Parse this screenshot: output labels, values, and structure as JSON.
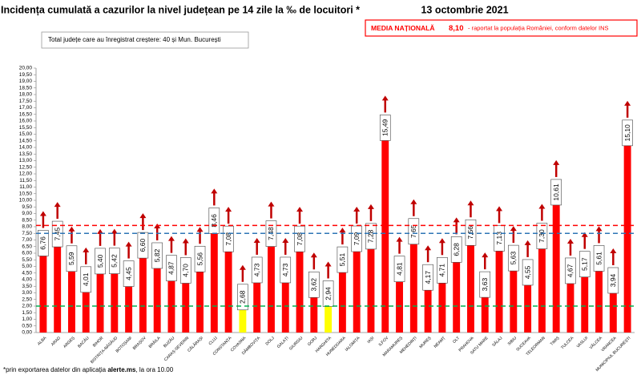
{
  "chart_data": {
    "type": "bar",
    "title": "Incidența cumulată a cazurilor la nivel județean pe 14 zile la ‰ de locuitori *",
    "date": "13 octombrie 2021",
    "note": "Total județe care au înregistrat creștere:  40 și Mun. București",
    "national_label": "MEDIA NAȚIONALĂ",
    "national_note": "- raportat la populația României, conform datelor INS",
    "footnote": [
      "*prin exportarea datelor din aplicația ",
      "alerte.ms",
      ", la ora 10.00"
    ],
    "categories": [
      "ALBA",
      "ARAD",
      "ARGEȘ",
      "BACĂU",
      "BIHOR",
      "BISTRIȚA-NĂSĂUD",
      "BOTOȘANI",
      "BRAȘOV",
      "BRĂILA",
      "BUZĂU",
      "CARAȘ-SEVERIN",
      "CĂLĂRAȘI",
      "CLUJ",
      "CONSTANȚA",
      "COVASNA",
      "DÂMBOVIȚA",
      "DOLJ",
      "GALAȚI",
      "GIURGIU",
      "GORJ",
      "HARGHITA",
      "HUNEDOARA",
      "IALOMIȚA",
      "IAȘI",
      "ILFOV",
      "MARAMUREȘ",
      "MEHEDINȚI",
      "MUREȘ",
      "NEAMȚ",
      "OLT",
      "PRAHOVA",
      "SATU MARE",
      "SĂLAJ",
      "SIBIU",
      "SUCEAVA",
      "TELEORMAN",
      "TIMIȘ",
      "TULCEA",
      "VASLUI",
      "VÂLCEA",
      "VRANCEA",
      "MUNICIPIUL BUCUREȘTI"
    ],
    "values": [
      6.76,
      7.45,
      5.59,
      4.01,
      5.4,
      5.42,
      4.45,
      6.6,
      5.82,
      4.87,
      4.7,
      5.56,
      8.46,
      7.08,
      2.68,
      4.73,
      7.48,
      4.73,
      7.08,
      3.62,
      2.94,
      5.51,
      7.09,
      7.28,
      15.49,
      4.81,
      7.65,
      4.17,
      4.71,
      6.28,
      7.56,
      3.63,
      7.13,
      5.63,
      4.55,
      7.3,
      10.61,
      4.67,
      5.17,
      5.61,
      3.94,
      15.1
    ],
    "value_labels": [
      "6,76",
      "7,45",
      "5,59",
      "4,01",
      "5,40",
      "5,42",
      "4,45",
      "6,60",
      "5,82",
      "4,87",
      "4,70",
      "5,56",
      "8,46",
      "7,08",
      "2,68",
      "4,73",
      "7,48",
      "4,73",
      "7,08",
      "3,62",
      "2,94",
      "5,51",
      "7,09",
      "7,28",
      "15,49",
      "4,81",
      "7,65",
      "4,17",
      "4,71",
      "6,28",
      "7,56",
      "3,63",
      "7,13",
      "5,63",
      "4,55",
      "7,30",
      "10,61",
      "4,67",
      "5,17",
      "5,61",
      "3,94",
      "15,10"
    ],
    "colors": [
      "#ff0000",
      "#ff0000",
      "#ff0000",
      "#ff0000",
      "#ff0000",
      "#ff0000",
      "#ff0000",
      "#ff0000",
      "#ff0000",
      "#ff0000",
      "#ff0000",
      "#ff0000",
      "#ff0000",
      "#ff0000",
      "#ffff00",
      "#ff0000",
      "#ff0000",
      "#ff0000",
      "#ff0000",
      "#ff0000",
      "#ffff00",
      "#ff0000",
      "#ff0000",
      "#ff0000",
      "#ff0000",
      "#ff0000",
      "#ff0000",
      "#ff0000",
      "#ff0000",
      "#ff0000",
      "#ff0000",
      "#ff0000",
      "#ff0000",
      "#ff0000",
      "#ff0000",
      "#ff0000",
      "#ff0000",
      "#ff0000",
      "#ff0000",
      "#ff0000",
      "#ff0000",
      "#ff0000"
    ],
    "reference_lines": [
      {
        "value": 8.1,
        "label": "8,10",
        "color": "#ff0000"
      },
      {
        "value": 7.5,
        "color": "#2e75b6"
      },
      {
        "value": 2.0,
        "color": "#00b050"
      }
    ],
    "ylim": [
      0,
      20
    ],
    "yticks": [
      {
        "value": 0,
        "label": "0,00"
      },
      {
        "value": 0.5,
        "label": "0,50"
      },
      {
        "value": 1,
        "label": "1,00"
      },
      {
        "value": 1.5,
        "label": "1,50"
      },
      {
        "value": 2,
        "label": "2,00"
      },
      {
        "value": 2.5,
        "label": "2,50"
      },
      {
        "value": 3,
        "label": "3,00"
      },
      {
        "value": 3.5,
        "label": "3,50"
      },
      {
        "value": 4,
        "label": "4,00"
      },
      {
        "value": 4.5,
        "label": "4,50"
      },
      {
        "value": 5,
        "label": "5,00"
      },
      {
        "value": 5.5,
        "label": "5,50"
      },
      {
        "value": 6,
        "label": "6,00"
      },
      {
        "value": 6.5,
        "label": "6,50"
      },
      {
        "value": 7,
        "label": "7,00"
      },
      {
        "value": 7.5,
        "label": "7,50"
      },
      {
        "value": 8,
        "label": "8,00"
      },
      {
        "value": 8.5,
        "label": "8,50"
      },
      {
        "value": 9,
        "label": "9,00"
      },
      {
        "value": 9.5,
        "label": "9,50"
      },
      {
        "value": 10,
        "label": "10,00"
      },
      {
        "value": 10.5,
        "label": "10,50"
      },
      {
        "value": 11,
        "label": "11,00"
      },
      {
        "value": 11.5,
        "label": "11,50"
      },
      {
        "value": 12,
        "label": "12,00"
      },
      {
        "value": 12.5,
        "label": "12,50"
      },
      {
        "value": 13,
        "label": "13,00"
      },
      {
        "value": 13.5,
        "label": "13,50"
      },
      {
        "value": 14,
        "label": "14,00"
      },
      {
        "value": 14.5,
        "label": "14,50"
      },
      {
        "value": 15,
        "label": "15,00"
      },
      {
        "value": 15.5,
        "label": "15,50"
      },
      {
        "value": 16,
        "label": "16,00"
      },
      {
        "value": 16.5,
        "label": "16,50"
      },
      {
        "value": 17,
        "label": "17,00"
      },
      {
        "value": 17.5,
        "label": "17,50"
      },
      {
        "value": 18,
        "label": "18,00"
      },
      {
        "value": 18.5,
        "label": "18,50"
      },
      {
        "value": 19,
        "label": "19,00"
      },
      {
        "value": 19.5,
        "label": "19,50"
      },
      {
        "value": 20,
        "label": "20,00"
      }
    ]
  }
}
